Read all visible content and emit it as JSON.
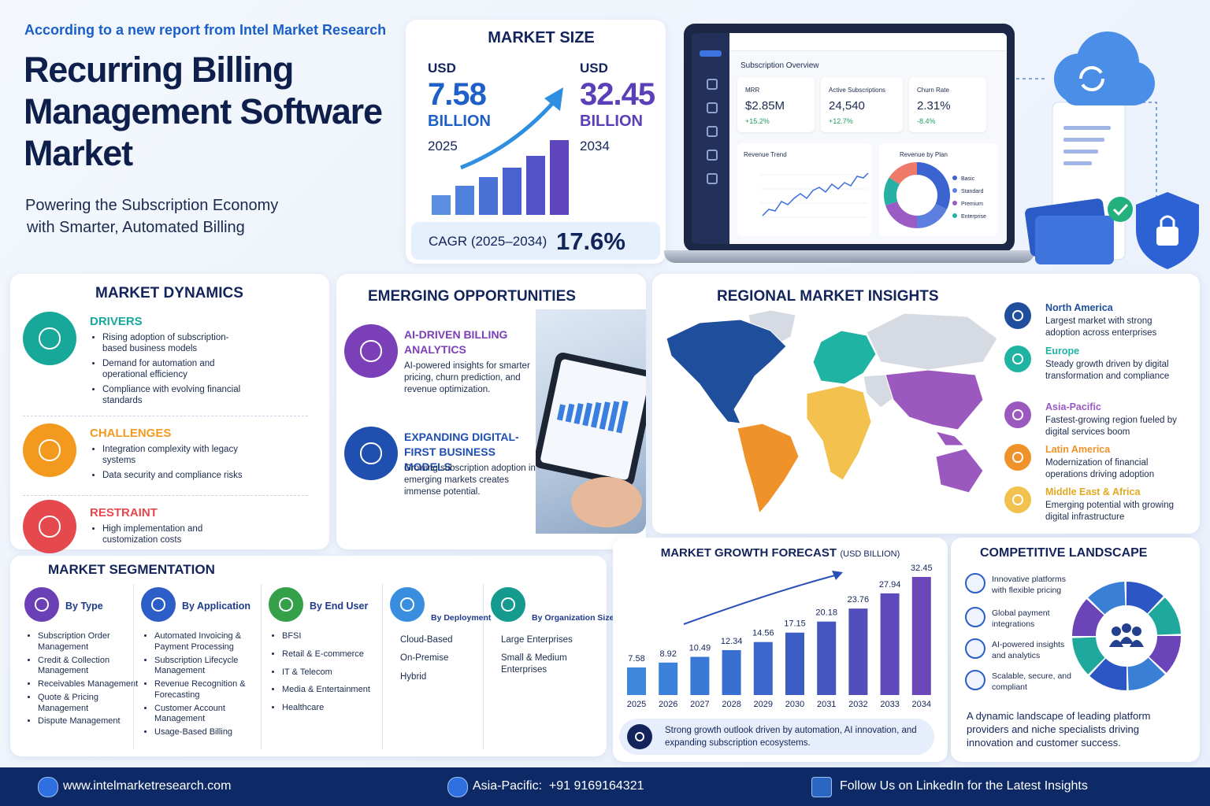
{
  "header": {
    "intro": "According to a new report from Intel Market Research",
    "title": [
      "Recurring Billing",
      "Management Software",
      "Market"
    ],
    "subtitle": [
      "Powering the Subscription Economy",
      "with Smarter, Automated Billing"
    ]
  },
  "market_size": {
    "title": "MARKET SIZE",
    "start": {
      "currency": "USD",
      "value": 7.58,
      "unit": "BILLION",
      "year": "2025"
    },
    "end": {
      "currency": "USD",
      "value": 32.45,
      "unit": "BILLION",
      "year": "2034"
    },
    "cagr_label": "CAGR (2025–2034)",
    "cagr": "17.6%"
  },
  "dashboard": {
    "title": "Subscription Overview",
    "kpis": [
      {
        "label": "MRR",
        "value": "$2.85M",
        "change": "+15.2%"
      },
      {
        "label": "Active Subscriptions",
        "value": "24,540",
        "change": "+12.7%"
      },
      {
        "label": "Churn Rate",
        "value": "2.31%",
        "change": "-8.4%"
      }
    ],
    "trend_title": "Revenue Trend",
    "plan_title": "Revenue by Plan",
    "plans": [
      "Basic",
      "Standard",
      "Premium",
      "Enterprise"
    ]
  },
  "dynamics": {
    "title": "MARKET DYNAMICS",
    "groups": [
      {
        "heading": "DRIVERS",
        "items": [
          "Rising adoption of subscription-based business models",
          "Demand for automation and operational efficiency",
          "Compliance with evolving financial standards"
        ]
      },
      {
        "heading": "CHALLENGES",
        "items": [
          "Integration complexity with legacy systems",
          "Data security and compliance risks"
        ]
      },
      {
        "heading": "RESTRAINT",
        "items": [
          "High implementation and customization costs"
        ]
      }
    ]
  },
  "opportunities": {
    "title": "EMERGING OPPORTUNITIES",
    "items": [
      {
        "heading": "AI-DRIVEN BILLING ANALYTICS",
        "text": "AI-powered insights for smarter pricing, churn prediction, and revenue optimization."
      },
      {
        "heading": "EXPANDING DIGITAL-FIRST BUSINESS MODELS",
        "text": "Growing subscription adoption in emerging markets creates immense potential."
      }
    ]
  },
  "regions": {
    "title": "REGIONAL MARKET INSIGHTS",
    "items": [
      {
        "name": "North America",
        "text": "Largest market with strong adoption across enterprises",
        "color": "#1f4e9c"
      },
      {
        "name": "Europe",
        "text": "Steady growth driven by digital transformation and compliance",
        "color": "#1fb3a3"
      },
      {
        "name": "Asia-Pacific",
        "text": "Fastest-growing region fueled by digital services boom",
        "color": "#9b59c0"
      },
      {
        "name": "Latin America",
        "text": "Modernization of financial operations driving adoption",
        "color": "#f0922a"
      },
      {
        "name": "Middle East & Africa",
        "text": "Emerging potential with growing digital infrastructure",
        "color": "#f2c14e"
      }
    ]
  },
  "segmentation": {
    "title": "MARKET SEGMENTATION",
    "columns": [
      {
        "heading": "By Type",
        "items": [
          "Subscription Order Management",
          "Credit & Collection Management",
          "Receivables Management",
          "Quote & Pricing Management",
          "Dispute Management"
        ]
      },
      {
        "heading": "By Application",
        "items": [
          "Automated Invoicing & Payment Processing",
          "Subscription Lifecycle Management",
          "Revenue Recognition & Forecasting",
          "Customer Account Management",
          "Usage-Based Billing"
        ]
      },
      {
        "heading": "By End User",
        "items": [
          "BFSI",
          "Retail & E-commerce",
          "IT & Telecom",
          "Media & Entertainment",
          "Healthcare"
        ]
      },
      {
        "heading": "By Deployment",
        "items": [
          "Cloud-Based",
          "On-Premise",
          "Hybrid"
        ]
      },
      {
        "heading": "By Organization Size",
        "items": [
          "Large Enterprises",
          "Small & Medium Enterprises"
        ]
      }
    ]
  },
  "chart_data": {
    "type": "bar",
    "title": "MARKET GROWTH FORECAST",
    "subtitle": "(USD BILLION)",
    "categories": [
      "2025",
      "2026",
      "2027",
      "2028",
      "2029",
      "2030",
      "2031",
      "2032",
      "2033",
      "2034"
    ],
    "values": [
      7.58,
      8.92,
      10.49,
      12.34,
      14.56,
      17.15,
      20.18,
      23.76,
      27.94,
      32.45
    ],
    "colors": [
      "#3d86dc",
      "#3b80da",
      "#3a78d6",
      "#3a6fd2",
      "#3b66cc",
      "#3d5dc6",
      "#4656c0",
      "#524fbc",
      "#5f4abb",
      "#6c47ba"
    ],
    "note": "Strong growth outlook driven by automation, AI innovation, and expanding subscription ecosystems."
  },
  "competitive": {
    "title": "COMPETITIVE LANDSCAPE",
    "items": [
      "Innovative platforms with flexible pricing",
      "Global payment integrations",
      "AI-powered insights and analytics",
      "Scalable, secure, and compliant"
    ],
    "summary": "A dynamic landscape of leading platform providers and niche specialists driving innovation and customer success."
  },
  "footer": {
    "website": "www.intelmarketresearch.com",
    "phone": "Asia-Pacific:  +91 9169164321",
    "linkedin": "Follow Us on LinkedIn for the Latest Insights"
  }
}
